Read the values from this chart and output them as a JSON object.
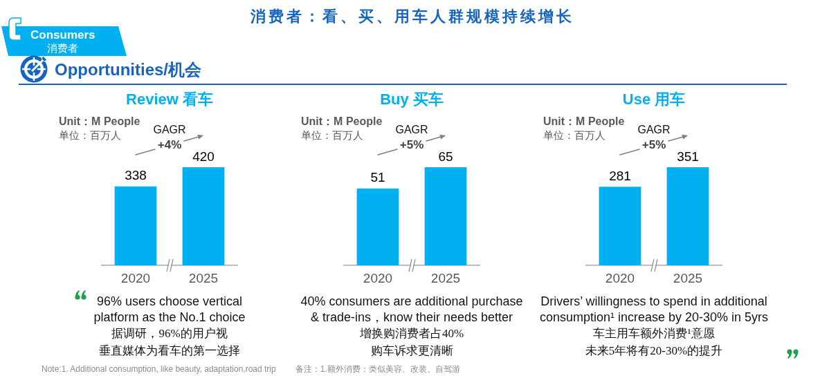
{
  "chart_data": [
    {
      "type": "other",
      "title": "消费者：看、买、用车人群规模持续增长",
      "annotations": [
        "Consumers",
        "消费者",
        "Opportunities/机会"
      ]
    },
    {
      "type": "bar",
      "title": "Review 看车",
      "categories": [
        "2020",
        "2025"
      ],
      "values": [
        338,
        420
      ],
      "color": "#00b0f0",
      "data_labels": true,
      "annotations": [
        "Unit：M People",
        "单位：百万人",
        "GAGR\n+4%",
        "96% users choose vertical\nplatform as the No.1 choice",
        "据调研，96%的用户视",
        "垂直媒体为看车的第一选择"
      ]
    },
    {
      "type": "bar",
      "title": "Buy 买车",
      "categories": [
        "2020",
        "2025"
      ],
      "values": [
        51,
        65
      ],
      "color": "#00b0f0",
      "data_labels": true,
      "annotations": [
        "Unit：M People",
        "单位：百万人",
        "GAGR\n+5%",
        "40% consumers are additional purchase\n& trade-ins，know their needs better",
        "增换购消费者占40%",
        "购车诉求更清晰"
      ]
    },
    {
      "type": "bar",
      "title": "Use 用车",
      "categories": [
        "2020",
        "2025"
      ],
      "values": [
        281,
        351
      ],
      "color": "#00b0f0",
      "data_labels": true,
      "annotations": [
        "Unit：M People",
        "单位：百万人",
        "GAGR\n+5%",
        "Drivers’ willingness to spend in additional\nconsumption¹ increase by 20-30% in 5yrs",
        "车主用车额外消费¹意愿",
        "未来5年将有20-30%的提升"
      ]
    },
    {
      "type": "other",
      "annotations": [
        "Note:1. Additional consumption, like beauty, adaptation,road trip",
        "备注：1.额外消费：类似美容、改装、自驾游"
      ]
    }
  ]
}
